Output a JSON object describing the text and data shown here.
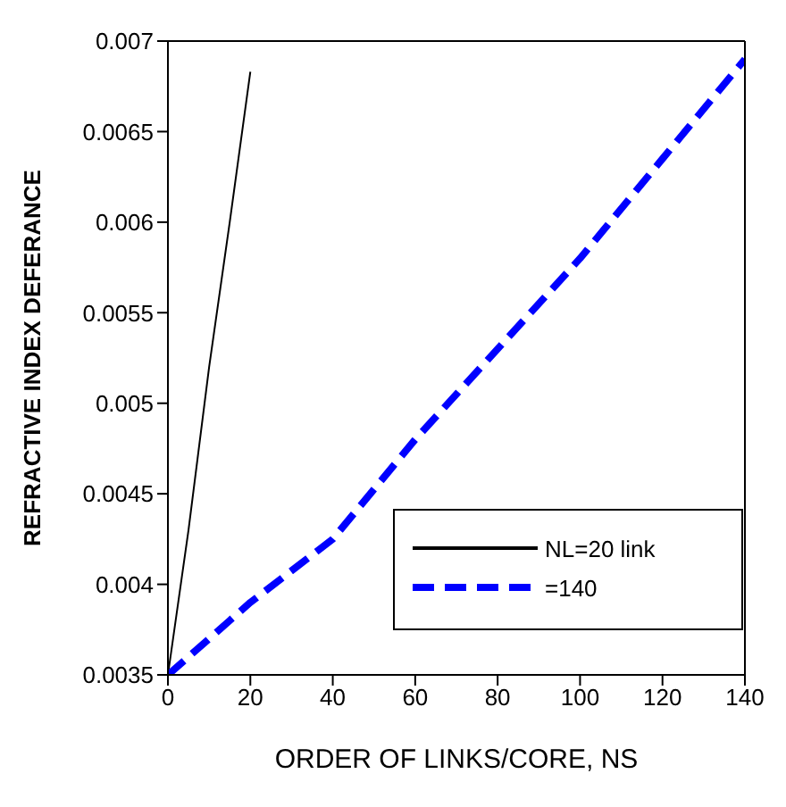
{
  "chart_data": {
    "type": "line",
    "xlabel": "ORDER OF LINKS/CORE, NS",
    "ylabel": "REFRACTIVE INDEX DEFERANCE",
    "xlim": [
      0,
      140
    ],
    "xticks": [
      0,
      20,
      40,
      60,
      80,
      100,
      120,
      140
    ],
    "ylim": [
      0.0035,
      0.007
    ],
    "yticks": [
      0.0035,
      0.004,
      0.0045,
      0.005,
      0.0055,
      0.006,
      0.0065,
      0.007
    ],
    "grid": false,
    "legend": "bottom right",
    "marker": "none",
    "series": [
      {
        "name": "NL=20 link",
        "color": "#000000",
        "line_style": "solid",
        "x": [
          0,
          5,
          10,
          15,
          20
        ],
        "values": [
          0.0035,
          0.0043,
          0.0052,
          0.006,
          0.00683
        ]
      },
      {
        "name": "=140",
        "color": "#0000ff",
        "line_style": "dashed",
        "x": [
          0,
          20,
          40,
          60,
          80,
          100,
          120,
          140
        ],
        "values": [
          0.0035,
          0.0039,
          0.00425,
          0.0048,
          0.0053,
          0.0058,
          0.00635,
          0.0069
        ]
      }
    ]
  }
}
